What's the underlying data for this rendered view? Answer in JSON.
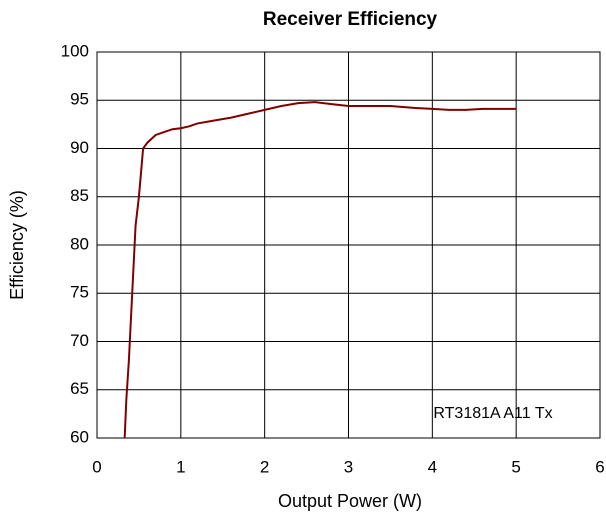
{
  "chart_data": {
    "type": "line",
    "title": "Receiver Efficiency",
    "x_label": "Output Power (W)",
    "y_label": "Efficiency (%)",
    "annotation": "RT3181A A11 Tx",
    "x": [
      0.33,
      0.35,
      0.38,
      0.42,
      0.46,
      0.5,
      0.55,
      0.6,
      0.7,
      0.8,
      0.9,
      1.0,
      1.1,
      1.2,
      1.4,
      1.6,
      1.8,
      2.0,
      2.2,
      2.4,
      2.6,
      2.8,
      3.0,
      3.2,
      3.5,
      3.8,
      4.0,
      4.2,
      4.4,
      4.6,
      5.0
    ],
    "series": [
      {
        "name": "RT3181A A11 Tx",
        "color": "#800000",
        "values": [
          60,
          64,
          68,
          75,
          82,
          85,
          90,
          90.6,
          91.4,
          91.7,
          92,
          92.1,
          92.3,
          92.6,
          92.9,
          93.2,
          93.6,
          94,
          94.4,
          94.7,
          94.8,
          94.6,
          94.4,
          94.4,
          94.4,
          94.2,
          94.1,
          94.0,
          94.0,
          94.1,
          94.1
        ]
      }
    ],
    "xlim": [
      0,
      6
    ],
    "xticks": [
      0,
      1,
      2,
      3,
      4,
      5,
      6
    ],
    "ylim": [
      60,
      100
    ],
    "yticks": [
      60,
      65,
      70,
      75,
      80,
      85,
      90,
      95,
      100
    ],
    "grid": true
  }
}
